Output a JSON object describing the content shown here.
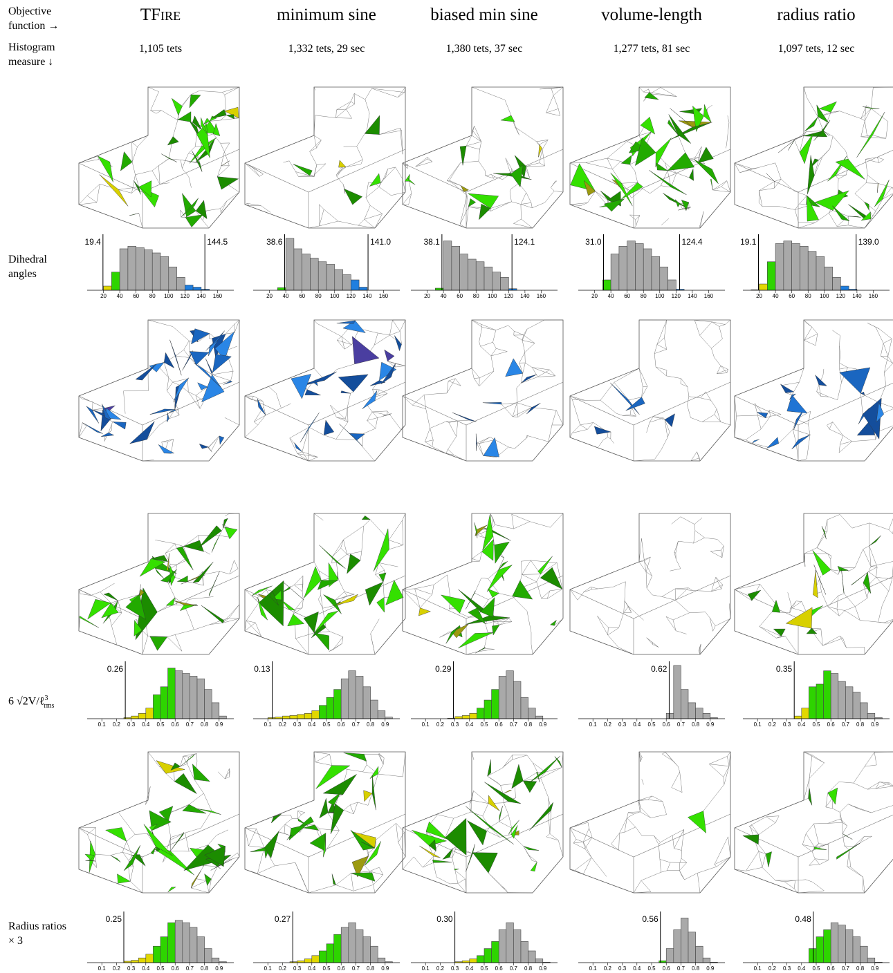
{
  "header": {
    "objective": "Objective function →",
    "measure": "Histogram measure ↓"
  },
  "columns": [
    {
      "title": "TFire",
      "subtitle": "1,105 tets"
    },
    {
      "title": "minimum sine",
      "subtitle": "1,332 tets, 29 sec"
    },
    {
      "title": "biased min sine",
      "subtitle": "1,380 tets, 37 sec"
    },
    {
      "title": "volume-length",
      "subtitle": "1,277 tets, 81 sec"
    },
    {
      "title": "radius ratio",
      "subtitle": "1,097 tets, 12 sec"
    }
  ],
  "rows": [
    {
      "label": "Dihedral angles",
      "type": "histogram",
      "xlim": [
        0,
        180
      ],
      "xticks": [
        20,
        40,
        60,
        80,
        100,
        120,
        140,
        160
      ],
      "ylim": [
        0,
        100
      ],
      "bins": [
        0,
        10,
        20,
        30,
        40,
        50,
        60,
        70,
        80,
        90,
        100,
        110,
        120,
        130,
        140,
        150,
        160,
        170,
        180
      ],
      "bands": [
        {
          "below": 30,
          "color": "#e2d800"
        },
        {
          "below": 40,
          "color": "#2ed400"
        },
        {
          "below": 120,
          "color": "#a9a9a9"
        },
        {
          "below": 180,
          "color": "#1f7fe0"
        }
      ],
      "histograms": [
        {
          "thresholds": [
            19.4,
            144.5
          ],
          "counts": [
            0,
            0,
            8,
            35,
            80,
            85,
            82,
            78,
            72,
            65,
            45,
            25,
            10,
            6,
            2,
            0,
            0,
            0
          ]
        },
        {
          "thresholds": [
            38.6,
            {
              "value": 141,
              "label": "141.0"
            }
          ],
          "counts": [
            0,
            0,
            0,
            5,
            100,
            80,
            70,
            62,
            55,
            50,
            40,
            30,
            20,
            6,
            0,
            0,
            0,
            0
          ]
        },
        {
          "thresholds": [
            38.1,
            124.1
          ],
          "counts": [
            0,
            0,
            0,
            4,
            95,
            85,
            70,
            60,
            55,
            45,
            35,
            25,
            3,
            0,
            0,
            0,
            0,
            0
          ]
        },
        {
          "thresholds": [
            {
              "value": 31,
              "label": "31.0"
            },
            124.4
          ],
          "counts": [
            0,
            0,
            0,
            20,
            70,
            85,
            95,
            90,
            80,
            65,
            45,
            20,
            2,
            0,
            0,
            0,
            0,
            0
          ]
        },
        {
          "thresholds": [
            19.1,
            {
              "value": 139,
              "label": "139.0"
            }
          ],
          "counts": [
            0,
            1,
            12,
            55,
            90,
            95,
            90,
            85,
            75,
            65,
            45,
            25,
            8,
            2,
            0,
            0,
            0,
            0
          ]
        }
      ]
    },
    {
      "label": {
        "main": "6 √2V/ℓ",
        "sup": "3",
        "sub": "rms"
      },
      "type": "histogram",
      "xlim": [
        0,
        1
      ],
      "xticks": [
        0.1,
        0.2,
        0.3,
        0.4,
        0.5,
        0.6,
        0.7,
        0.8,
        0.9
      ],
      "ylim": [
        0,
        100
      ],
      "bins": [
        0,
        0.05,
        0.1,
        0.15,
        0.2,
        0.25,
        0.3,
        0.35,
        0.4,
        0.45,
        0.5,
        0.55,
        0.6,
        0.65,
        0.7,
        0.75,
        0.8,
        0.85,
        0.9,
        0.95,
        1
      ],
      "bands": [
        {
          "below": 0.45,
          "color": "#e2d800"
        },
        {
          "below": 0.6,
          "color": "#2ed400"
        },
        {
          "below": 1,
          "color": "#a9a9a9"
        }
      ],
      "histograms": [
        {
          "thresholds": [
            0.26
          ],
          "counts": [
            0,
            0,
            0,
            0,
            0,
            2,
            5,
            10,
            20,
            45,
            60,
            95,
            90,
            85,
            80,
            75,
            55,
            30,
            5,
            0
          ]
        },
        {
          "thresholds": [
            0.13
          ],
          "counts": [
            0,
            0,
            2,
            3,
            5,
            6,
            8,
            10,
            15,
            25,
            40,
            55,
            75,
            90,
            80,
            60,
            35,
            15,
            3,
            0
          ]
        },
        {
          "thresholds": [
            0.29
          ],
          "counts": [
            0,
            0,
            0,
            0,
            0,
            1,
            4,
            6,
            10,
            20,
            35,
            55,
            80,
            90,
            70,
            40,
            20,
            5,
            0,
            0
          ]
        },
        {
          "thresholds": [
            0.62
          ],
          "counts": [
            0,
            0,
            0,
            0,
            0,
            0,
            0,
            0,
            0,
            0,
            0,
            0,
            10,
            100,
            55,
            30,
            20,
            10,
            2,
            0
          ]
        },
        {
          "thresholds": [
            0.35
          ],
          "counts": [
            0,
            0,
            0,
            0,
            0,
            0,
            0,
            5,
            20,
            60,
            65,
            90,
            85,
            70,
            60,
            50,
            30,
            10,
            2,
            0
          ]
        }
      ]
    },
    {
      "label": "Radius ratios × 3",
      "type": "histogram",
      "xlim": [
        0,
        1
      ],
      "xticks": [
        0.1,
        0.2,
        0.3,
        0.4,
        0.5,
        0.6,
        0.7,
        0.8,
        0.9
      ],
      "ylim": [
        0,
        100
      ],
      "bins": [
        0,
        0.05,
        0.1,
        0.15,
        0.2,
        0.25,
        0.3,
        0.35,
        0.4,
        0.45,
        0.5,
        0.55,
        0.6,
        0.65,
        0.7,
        0.75,
        0.8,
        0.85,
        0.9,
        0.95,
        1
      ],
      "bands": [
        {
          "below": 0.45,
          "color": "#e2d800"
        },
        {
          "below": 0.6,
          "color": "#2ed400"
        },
        {
          "below": 1,
          "color": "#a9a9a9"
        }
      ],
      "histograms": [
        {
          "thresholds": [
            0.25
          ],
          "counts": [
            0,
            0,
            0,
            0,
            0,
            3,
            5,
            10,
            18,
            35,
            55,
            85,
            90,
            85,
            75,
            55,
            30,
            10,
            2,
            0
          ]
        },
        {
          "thresholds": [
            0.27
          ],
          "counts": [
            0,
            0,
            0,
            0,
            0,
            2,
            4,
            8,
            15,
            25,
            40,
            60,
            75,
            85,
            70,
            55,
            35,
            10,
            2,
            0
          ]
        },
        {
          "thresholds": [
            {
              "value": 0.3,
              "label": "0.30"
            }
          ],
          "counts": [
            0,
            0,
            0,
            0,
            0,
            0,
            2,
            4,
            8,
            15,
            30,
            45,
            70,
            85,
            70,
            45,
            25,
            8,
            1,
            0
          ]
        },
        {
          "thresholds": [
            0.56
          ],
          "counts": [
            0,
            0,
            0,
            0,
            0,
            0,
            0,
            0,
            0,
            0,
            0,
            4,
            30,
            70,
            95,
            65,
            35,
            10,
            1,
            0
          ]
        },
        {
          "thresholds": [
            0.48
          ],
          "counts": [
            0,
            0,
            0,
            0,
            0,
            0,
            0,
            0,
            0,
            30,
            55,
            70,
            85,
            80,
            70,
            55,
            35,
            10,
            1,
            0
          ]
        }
      ]
    }
  ]
}
